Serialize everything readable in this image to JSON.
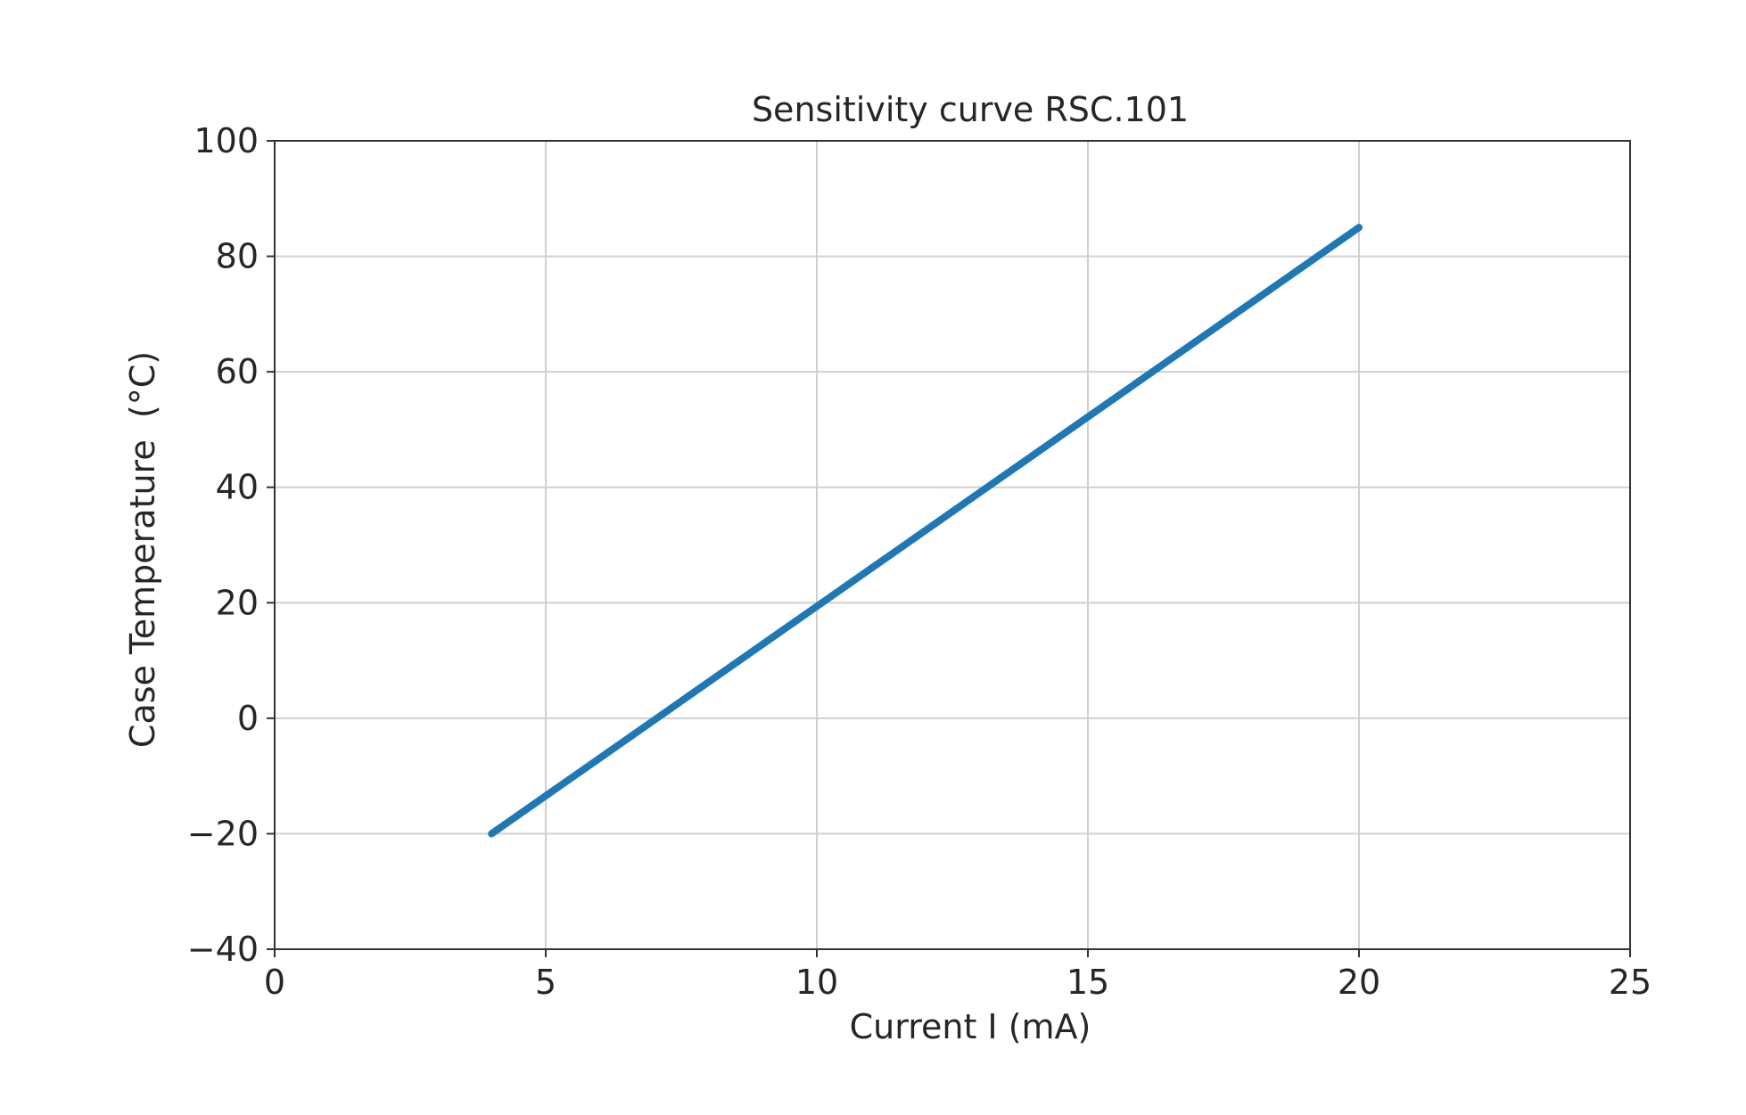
{
  "chart_data": {
    "type": "line",
    "title": "Sensitivity curve RSC.101",
    "xlabel": "Current I (mA)",
    "ylabel": "Case Temperature  (°C)",
    "xlim": [
      0,
      25
    ],
    "ylim": [
      -40,
      100
    ],
    "xticks": [
      0,
      5,
      10,
      15,
      20,
      25
    ],
    "yticks": [
      -40,
      -20,
      0,
      20,
      40,
      60,
      80,
      100
    ],
    "xtick_labels": [
      "0",
      "5",
      "10",
      "15",
      "20",
      "25"
    ],
    "ytick_labels": [
      "−40",
      "−20",
      "0",
      "20",
      "40",
      "60",
      "80",
      "100"
    ],
    "grid": true,
    "series": [
      {
        "color": "#1f77b4",
        "x": [
          4,
          20
        ],
        "y": [
          -20,
          85
        ]
      }
    ]
  }
}
